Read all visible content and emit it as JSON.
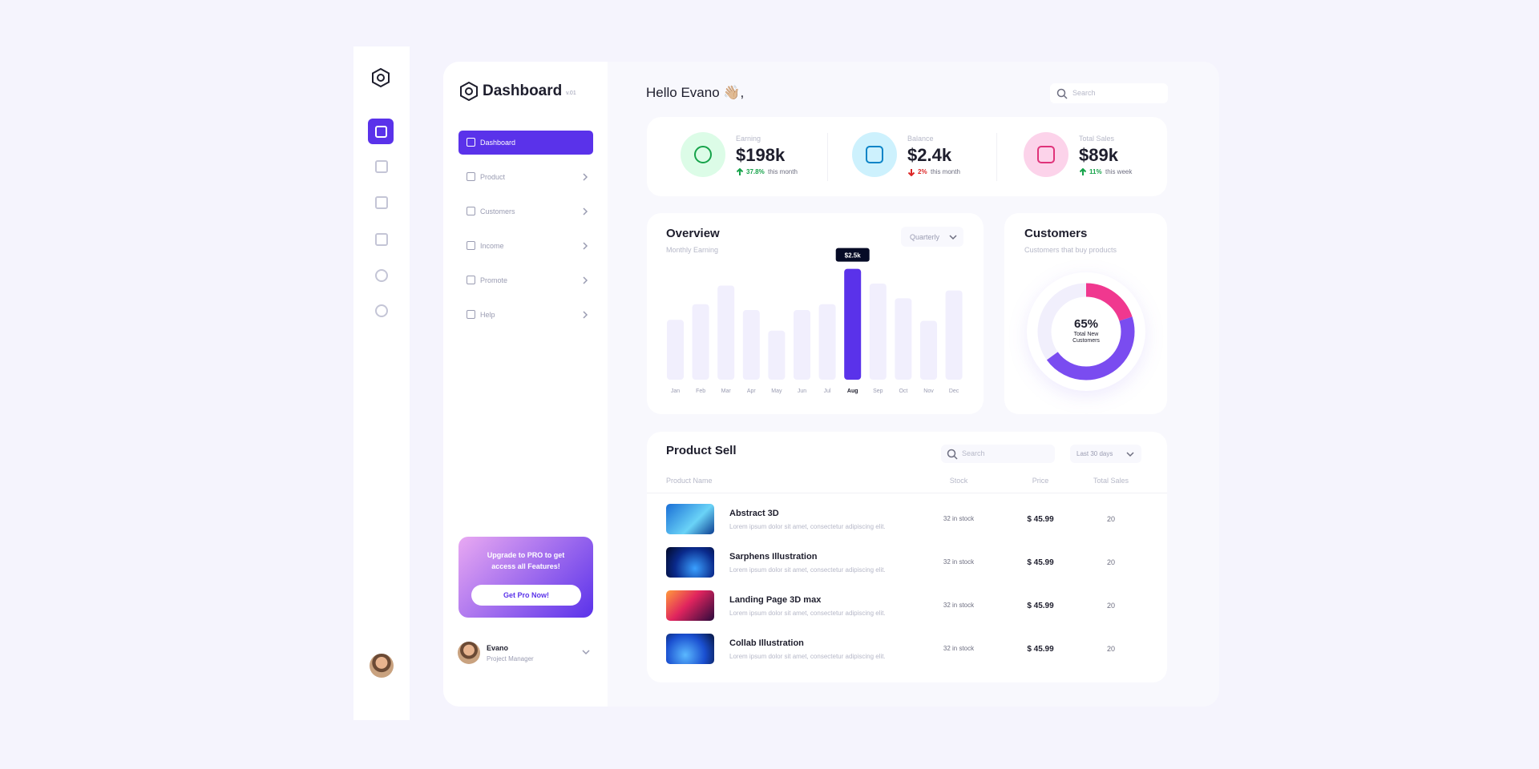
{
  "brand": {
    "title": "Dashboard",
    "version": "v.01"
  },
  "nav": [
    {
      "label": "Dashboard",
      "active": true
    },
    {
      "label": "Product",
      "active": false
    },
    {
      "label": "Customers",
      "active": false
    },
    {
      "label": "Income",
      "active": false
    },
    {
      "label": "Promote",
      "active": false
    },
    {
      "label": "Help",
      "active": false
    }
  ],
  "upgrade": {
    "text": "Upgrade to PRO to get access all Features!",
    "button": "Get Pro Now!"
  },
  "user": {
    "name": "Evano",
    "role": "Project Manager"
  },
  "header": {
    "greeting": "Hello Evano 👋🏼,",
    "search_placeholder": "Search"
  },
  "stats": [
    {
      "label": "Earning",
      "value": "$198k",
      "change": "37.8%",
      "period": "this month",
      "trend": "up"
    },
    {
      "label": "Balance",
      "value": "$2.4k",
      "change": "2%",
      "period": "this month",
      "trend": "down"
    },
    {
      "label": "Total Sales",
      "value": "$89k",
      "change": "11%",
      "period": "this week",
      "trend": "up"
    }
  ],
  "chart_data": [
    {
      "type": "bar",
      "title": "Overview",
      "subtitle": "Monthly Earning",
      "period": "Quarterly",
      "categories": [
        "Jan",
        "Feb",
        "Mar",
        "Apr",
        "May",
        "Jun",
        "Jul",
        "Aug",
        "Sep",
        "Oct",
        "Nov",
        "Dec"
      ],
      "values": [
        61,
        77,
        96,
        71,
        50,
        71,
        77,
        113,
        98,
        83,
        60,
        91
      ],
      "color": "#f1effd",
      "highlight": "Aug",
      "highlight_color": "#5a32ea",
      "highlight_label": "$2.5k"
    },
    {
      "type": "donut",
      "title": "Customers",
      "subtitle": "Customers that buy products",
      "center_label": "65%",
      "caption": "Total New Customers",
      "values": [
        20,
        45
      ],
      "colors": [
        "#f0388f",
        "#7a4cf0"
      ]
    }
  ],
  "product_sell": {
    "title": "Product Sell",
    "search_placeholder": "Search",
    "period": "Last 30 days",
    "columns": [
      "Product Name",
      "Stock",
      "Price",
      "Total Sales"
    ],
    "rows": [
      {
        "name": "Abstract 3D",
        "description": "Lorem ipsum dolor sit amet, consectetur adipiscing elit.",
        "stock": "32 in stock",
        "price": "$ 45.99",
        "sales": "20"
      },
      {
        "name": "Sarphens Illustration",
        "description": "Lorem ipsum dolor sit amet, consectetur adipiscing elit.",
        "stock": "32 in stock",
        "price": "$ 45.99",
        "sales": "20"
      },
      {
        "name": "Landing Page 3D max",
        "description": "Lorem ipsum dolor sit amet, consectetur adipiscing elit.",
        "stock": "32 in stock",
        "price": "$ 45.99",
        "sales": "20"
      },
      {
        "name": "Collab Illustration",
        "description": "Lorem ipsum dolor sit amet, consectetur adipiscing elit.",
        "stock": "32 in stock",
        "price": "$ 45.99",
        "sales": "20"
      }
    ]
  }
}
